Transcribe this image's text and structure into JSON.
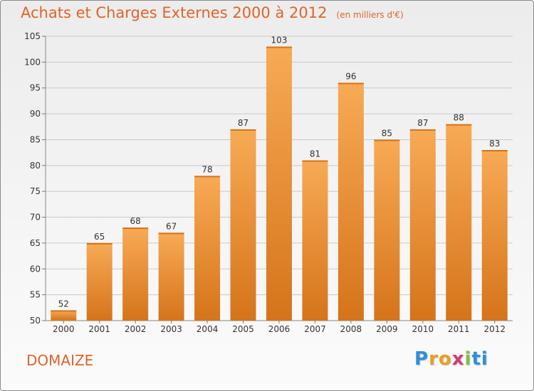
{
  "commune": "DOMAIZE",
  "logo": {
    "letters": [
      "P",
      "r",
      "o",
      "x",
      "i",
      "t",
      "i"
    ],
    "colors": [
      "#2f8fd8",
      "#e8a020",
      "#e8a020",
      "#d63a7a",
      "#7cc242",
      "#2f8fd8",
      "#2f8fd8"
    ]
  },
  "colors": {
    "bar": "#f0943d",
    "bar_light": "#f8aa55",
    "bar_dark": "#d5741a",
    "title": "#e0632a"
  },
  "chart_data": {
    "type": "bar",
    "title": "Achats et Charges Externes 2000 à 2012",
    "subtitle": "(en milliers d'€)",
    "xlabel": "",
    "ylabel": "",
    "categories": [
      "2000",
      "2001",
      "2002",
      "2003",
      "2004",
      "2005",
      "2006",
      "2007",
      "2008",
      "2009",
      "2010",
      "2011",
      "2012"
    ],
    "values": [
      52,
      65,
      68,
      67,
      78,
      87,
      103,
      81,
      96,
      85,
      87,
      88,
      83
    ],
    "ylim": [
      50,
      105
    ],
    "yticks": [
      50,
      55,
      60,
      65,
      70,
      75,
      80,
      85,
      90,
      95,
      100,
      105
    ],
    "grid": true,
    "legend": "none"
  }
}
